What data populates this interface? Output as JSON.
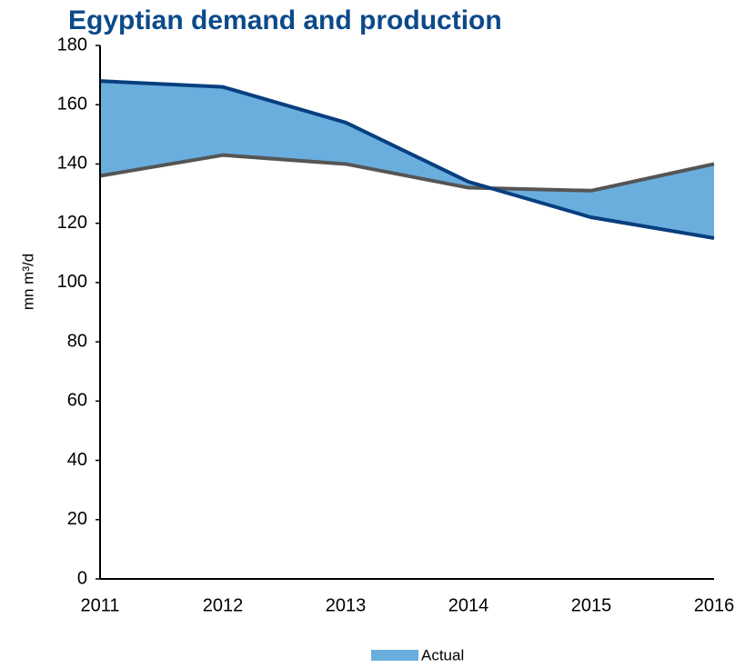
{
  "chart_data": {
    "type": "line-band",
    "title": "Egyptian demand and production",
    "y_label": "mn m³/d",
    "categories": [
      "2011",
      "2012",
      "2013",
      "2014",
      "2015",
      "2016"
    ],
    "series": [
      {
        "color": "#073f7f",
        "values": [
          168,
          166,
          154,
          134,
          122,
          115
        ]
      },
      {
        "color": "#555555",
        "values": [
          136,
          143,
          140,
          132,
          131,
          140
        ]
      }
    ],
    "band": {
      "name": "Actual",
      "color": "#6aaede"
    },
    "ylim": [
      0,
      180
    ],
    "yticks": [
      0,
      20,
      40,
      60,
      80,
      100,
      120,
      140,
      160,
      180
    ],
    "grid": false,
    "legend": "bottom"
  }
}
